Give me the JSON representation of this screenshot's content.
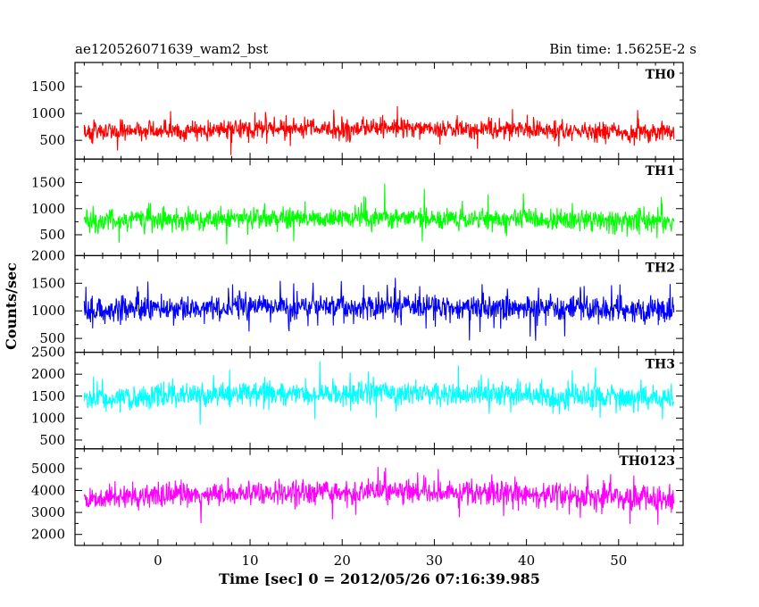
{
  "chart_data": {
    "type": "line",
    "title": "ae120526071639_wam2_bst",
    "subtitle": "Bin time: 1.5625E-2 s",
    "xlabel": "Time [sec] 0 = 2012/05/26 07:16:39.985",
    "ylabel": "Counts/sec",
    "xlim": [
      -9,
      57
    ],
    "x_ticks": [
      0,
      10,
      20,
      30,
      40,
      50
    ],
    "x_start": -8,
    "x_end": 56,
    "grid": false,
    "panels": [
      {
        "name": "TH0",
        "color": "#ff0000",
        "ylim": [
          150,
          1950
        ],
        "y_ticks": [
          500,
          1000,
          1500
        ],
        "y_tick_labels": [
          "500",
          "1000",
          "1500"
        ],
        "baseline": 660,
        "spread": 230,
        "min": 150,
        "max": 1950
      },
      {
        "name": "TH1",
        "color": "#00ff00",
        "ylim": [
          100,
          1950
        ],
        "y_ticks": [
          500,
          1000,
          1500
        ],
        "y_tick_labels": [
          "500",
          "1000",
          "1500"
        ],
        "baseline": 760,
        "spread": 250,
        "min": 100,
        "max": 1950
      },
      {
        "name": "TH2",
        "color": "#0000ff",
        "ylim": [
          250,
          2000
        ],
        "y_ticks": [
          500,
          1000,
          1500,
          2000
        ],
        "y_tick_labels": [
          "500",
          "1000",
          "1500",
          "2000"
        ],
        "baseline": 1000,
        "spread": 290,
        "min": 250,
        "max": 2000
      },
      {
        "name": "TH3",
        "color": "#00ffff",
        "ylim": [
          300,
          2500
        ],
        "y_ticks": [
          500,
          1000,
          1500,
          2000,
          2500
        ],
        "y_tick_labels": [
          "500",
          "1000",
          "1500",
          "2000",
          "2500"
        ],
        "baseline": 1450,
        "spread": 340,
        "min": 300,
        "max": 2500
      },
      {
        "name": "TH0123",
        "color": "#ff00ff",
        "ylim": [
          1500,
          5900
        ],
        "y_ticks": [
          2000,
          3000,
          4000,
          5000
        ],
        "y_tick_labels": [
          "2000",
          "3000",
          "4000",
          "5000"
        ],
        "baseline": 3650,
        "spread": 700,
        "min": 1500,
        "max": 5900
      }
    ]
  }
}
